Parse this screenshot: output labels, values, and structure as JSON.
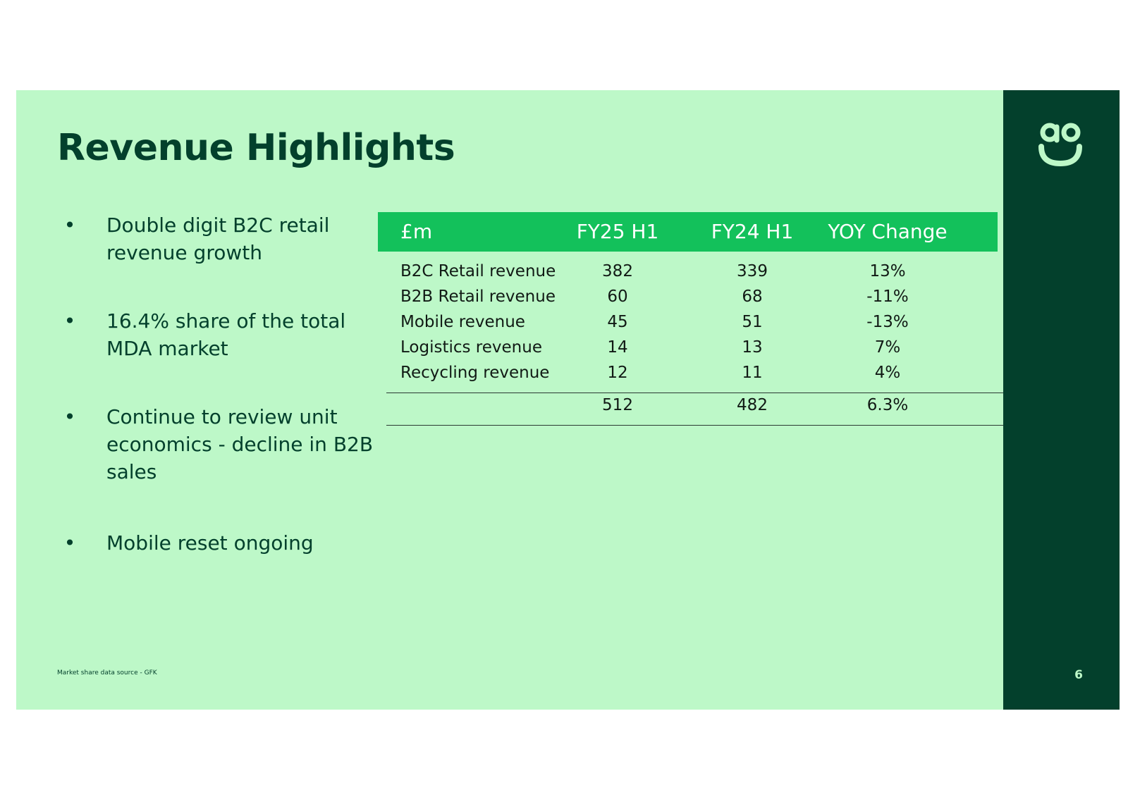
{
  "title": "Revenue Highlights",
  "bullets": [
    "Double digit B2C retail revenue growth",
    "16.4% share of the total MDA market",
    "Continue to review unit economics  - decline in B2B sales",
    "Mobile reset ongoing"
  ],
  "bullet_symbol": "•",
  "table": {
    "headers": [
      "£m",
      "FY25  H1",
      "FY24  H1",
      "YOY  Change"
    ],
    "rows": [
      {
        "label": "B2C Retail revenue",
        "fy25": "382",
        "fy24": "339",
        "yoy": "13%"
      },
      {
        "label": "B2B Retail revenue",
        "fy25": "60",
        "fy24": "68",
        "yoy": "-11%"
      },
      {
        "label": "Mobile revenue",
        "fy25": "45",
        "fy24": "51",
        "yoy": "-13%"
      },
      {
        "label": "Logistics revenue",
        "fy25": "14",
        "fy24": "13",
        "yoy": "7%"
      },
      {
        "label": "Recycling revenue",
        "fy25": "12",
        "fy24": "11",
        "yoy": "4%"
      }
    ],
    "total": {
      "label": "",
      "fy25": "512",
      "fy24": "482",
      "yoy": "6.3%"
    }
  },
  "footnote": "Market share data source - GFK",
  "page_number": "6",
  "logo_icon": "ao-smile-logo-icon",
  "colors": {
    "background": "#bdf8c8",
    "panel": "#03402c",
    "header": "#13c15b",
    "text": "#03402c"
  }
}
